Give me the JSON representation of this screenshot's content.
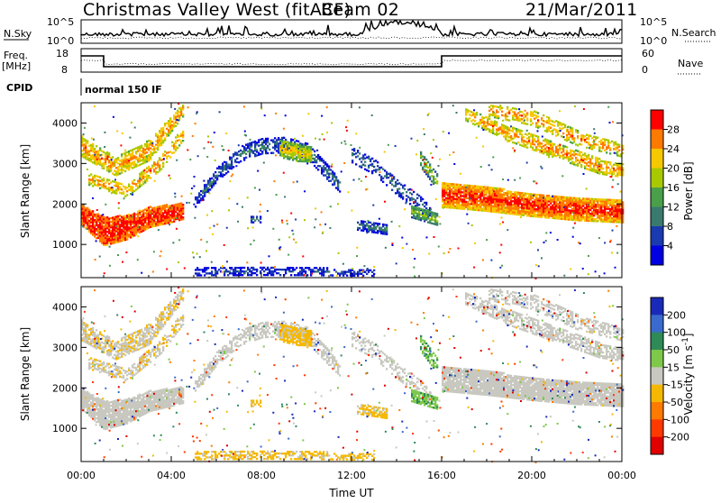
{
  "header": {
    "title": "Christmas Valley West (fitACF)",
    "beam": "Beam 02",
    "date": "21/Mar/2011"
  },
  "top_panels": {
    "nsky_label": "N.Sky",
    "nsky_ticks": [
      "10^5",
      "10^0"
    ],
    "nsearch_label": "N.Search",
    "nsearch_ticks": [
      "10^5",
      "10^0"
    ],
    "freq_label": "Freq.",
    "freq_unit": "[MHz]",
    "freq_ticks": [
      "18",
      "8"
    ],
    "nave_label": "Nave",
    "nave_ticks": [
      "60",
      "0"
    ],
    "cpid_label": "CPID",
    "cpid_value": "normal 150 IF"
  },
  "chart_data": [
    {
      "type": "heatmap",
      "title": "",
      "xlabel": "Time UT",
      "ylabel": "Slant Range [km]",
      "x_ticks": [
        "00:00",
        "04:00",
        "08:00",
        "12:00",
        "16:00",
        "20:00",
        "00:00"
      ],
      "y_ticks": [
        1000,
        2000,
        3000,
        4000
      ],
      "xlim_hours": [
        0,
        24
      ],
      "ylim_km": [
        180,
        4500
      ],
      "colorbar": {
        "label": "Power [dB]",
        "ticks": [
          "28",
          "24",
          "20",
          "16",
          "12",
          "8",
          "4"
        ],
        "colors": [
          "#ff0000",
          "#ff7a00",
          "#f5c800",
          "#a8c800",
          "#4aa04a",
          "#3a7a6e",
          "#1a3ab0",
          "#0000e0"
        ]
      }
    },
    {
      "type": "heatmap",
      "title": "",
      "xlabel": "Time UT",
      "ylabel": "Slant Range [km]",
      "x_ticks": [
        "00:00",
        "04:00",
        "08:00",
        "12:00",
        "16:00",
        "20:00",
        "00:00"
      ],
      "y_ticks": [
        1000,
        2000,
        3000,
        4000
      ],
      "xlim_hours": [
        0,
        24
      ],
      "ylim_km": [
        180,
        4500
      ],
      "colorbar": {
        "label": "Velocity [m s^-1]",
        "ticks": [
          "200",
          "100",
          "50",
          "15",
          "-15",
          "-50",
          "-100",
          "-200"
        ],
        "colors": [
          "#1a2ab8",
          "#3a6acd",
          "#2e8a57",
          "#7ec84a",
          "#c8c8c0",
          "#f5b800",
          "#ff7a00",
          "#ff3a00",
          "#e00000"
        ]
      }
    }
  ],
  "colors": {
    "axis": "#000000",
    "ground_scatter": "#c8c8c0"
  }
}
